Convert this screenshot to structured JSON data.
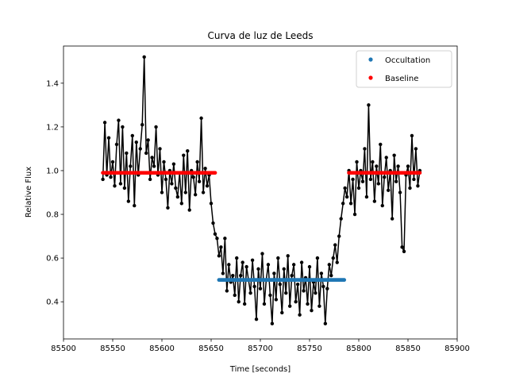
{
  "chart_data": {
    "type": "line",
    "title": "Curva de luz de Leeds",
    "xlabel": "Time [seconds]",
    "ylabel": "Relative Flux",
    "xlim": [
      85500,
      85900
    ],
    "ylim": [
      0.23,
      1.57
    ],
    "xticks": [
      "85500",
      "85550",
      "85600",
      "85650",
      "85700",
      "85750",
      "85800",
      "85850",
      "85900"
    ],
    "yticks": [
      "0.4",
      "0.6",
      "0.8",
      "1.0",
      "1.2",
      "1.4"
    ],
    "legend_position": "top-right",
    "grid": false,
    "series": [
      {
        "name": "Occultation",
        "color": "#1f77b4",
        "x_range": [
          85658,
          85786
        ],
        "y": 0.5
      },
      {
        "name": "Baseline",
        "color": "#ff0000",
        "segments": [
          {
            "x_range": [
              85540,
              85655
            ],
            "y": 0.99
          },
          {
            "x_range": [
              85790,
              85862
            ],
            "y": 0.99
          }
        ]
      },
      {
        "name": "",
        "color": "#000000",
        "x": [
          85540,
          85542,
          85544,
          85546,
          85548,
          85550,
          85552,
          85554,
          85556,
          85558,
          85560,
          85562,
          85564,
          85566,
          85568,
          85570,
          85572,
          85574,
          85576,
          85578,
          85580,
          85582,
          85584,
          85586,
          85588,
          85590,
          85592,
          85594,
          85596,
          85598,
          85600,
          85602,
          85604,
          85606,
          85608,
          85610,
          85612,
          85614,
          85616,
          85618,
          85620,
          85622,
          85624,
          85626,
          85628,
          85630,
          85632,
          85634,
          85636,
          85638,
          85640,
          85642,
          85644,
          85646,
          85648,
          85650,
          85652,
          85654,
          85656,
          85658,
          85660,
          85662,
          85664,
          85666,
          85668,
          85670,
          85672,
          85674,
          85676,
          85678,
          85680,
          85682,
          85684,
          85686,
          85688,
          85690,
          85692,
          85694,
          85696,
          85698,
          85700,
          85702,
          85704,
          85706,
          85708,
          85710,
          85712,
          85714,
          85716,
          85718,
          85720,
          85722,
          85724,
          85726,
          85728,
          85730,
          85732,
          85734,
          85736,
          85738,
          85740,
          85742,
          85744,
          85746,
          85748,
          85750,
          85752,
          85754,
          85756,
          85758,
          85760,
          85762,
          85764,
          85766,
          85768,
          85770,
          85772,
          85774,
          85776,
          85778,
          85780,
          85782,
          85784,
          85786,
          85788,
          85790,
          85792,
          85794,
          85796,
          85798,
          85800,
          85802,
          85804,
          85806,
          85808,
          85810,
          85812,
          85814,
          85816,
          85818,
          85820,
          85822,
          85824,
          85826,
          85828,
          85830,
          85832,
          85834,
          85836,
          85838,
          85840,
          85842,
          85844,
          85846,
          85848,
          85850,
          85852,
          85854,
          85856,
          85858,
          85860,
          85862
        ],
        "y": [
          0.96,
          1.22,
          0.98,
          1.15,
          0.97,
          1.04,
          0.93,
          1.12,
          1.23,
          0.94,
          1.2,
          0.92,
          1.08,
          0.86,
          1.02,
          1.16,
          0.84,
          1.13,
          0.98,
          1.1,
          1.21,
          1.52,
          1.08,
          1.14,
          0.96,
          1.06,
          1.02,
          1.2,
          0.98,
          1.1,
          0.9,
          1.04,
          0.96,
          0.83,
          1.0,
          0.94,
          1.03,
          0.92,
          0.88,
          0.99,
          0.85,
          1.07,
          0.9,
          1.09,
          0.82,
          1.0,
          0.97,
          0.89,
          1.04,
          0.95,
          1.24,
          0.9,
          1.01,
          0.93,
          0.98,
          0.85,
          0.76,
          0.71,
          0.69,
          0.61,
          0.65,
          0.53,
          0.69,
          0.45,
          0.57,
          0.49,
          0.52,
          0.43,
          0.6,
          0.4,
          0.52,
          0.58,
          0.39,
          0.56,
          0.5,
          0.44,
          0.59,
          0.47,
          0.32,
          0.55,
          0.46,
          0.62,
          0.39,
          0.5,
          0.57,
          0.43,
          0.3,
          0.53,
          0.41,
          0.6,
          0.48,
          0.35,
          0.55,
          0.44,
          0.61,
          0.38,
          0.52,
          0.57,
          0.4,
          0.48,
          0.34,
          0.58,
          0.45,
          0.51,
          0.39,
          0.56,
          0.36,
          0.49,
          0.44,
          0.6,
          0.38,
          0.53,
          0.47,
          0.3,
          0.46,
          0.57,
          0.52,
          0.6,
          0.66,
          0.58,
          0.7,
          0.78,
          0.85,
          0.92,
          0.88,
          1.0,
          0.85,
          0.96,
          0.8,
          1.04,
          0.92,
          1.0,
          0.95,
          1.1,
          0.88,
          1.3,
          0.96,
          1.04,
          0.86,
          1.02,
          0.94,
          1.12,
          0.84,
          0.97,
          1.06,
          0.91,
          1.0,
          0.78,
          1.07,
          0.95,
          1.02,
          0.9,
          0.65,
          0.63,
          0.98,
          1.02,
          0.92,
          1.16,
          0.96,
          1.1,
          0.93,
          1.0
        ]
      }
    ]
  }
}
